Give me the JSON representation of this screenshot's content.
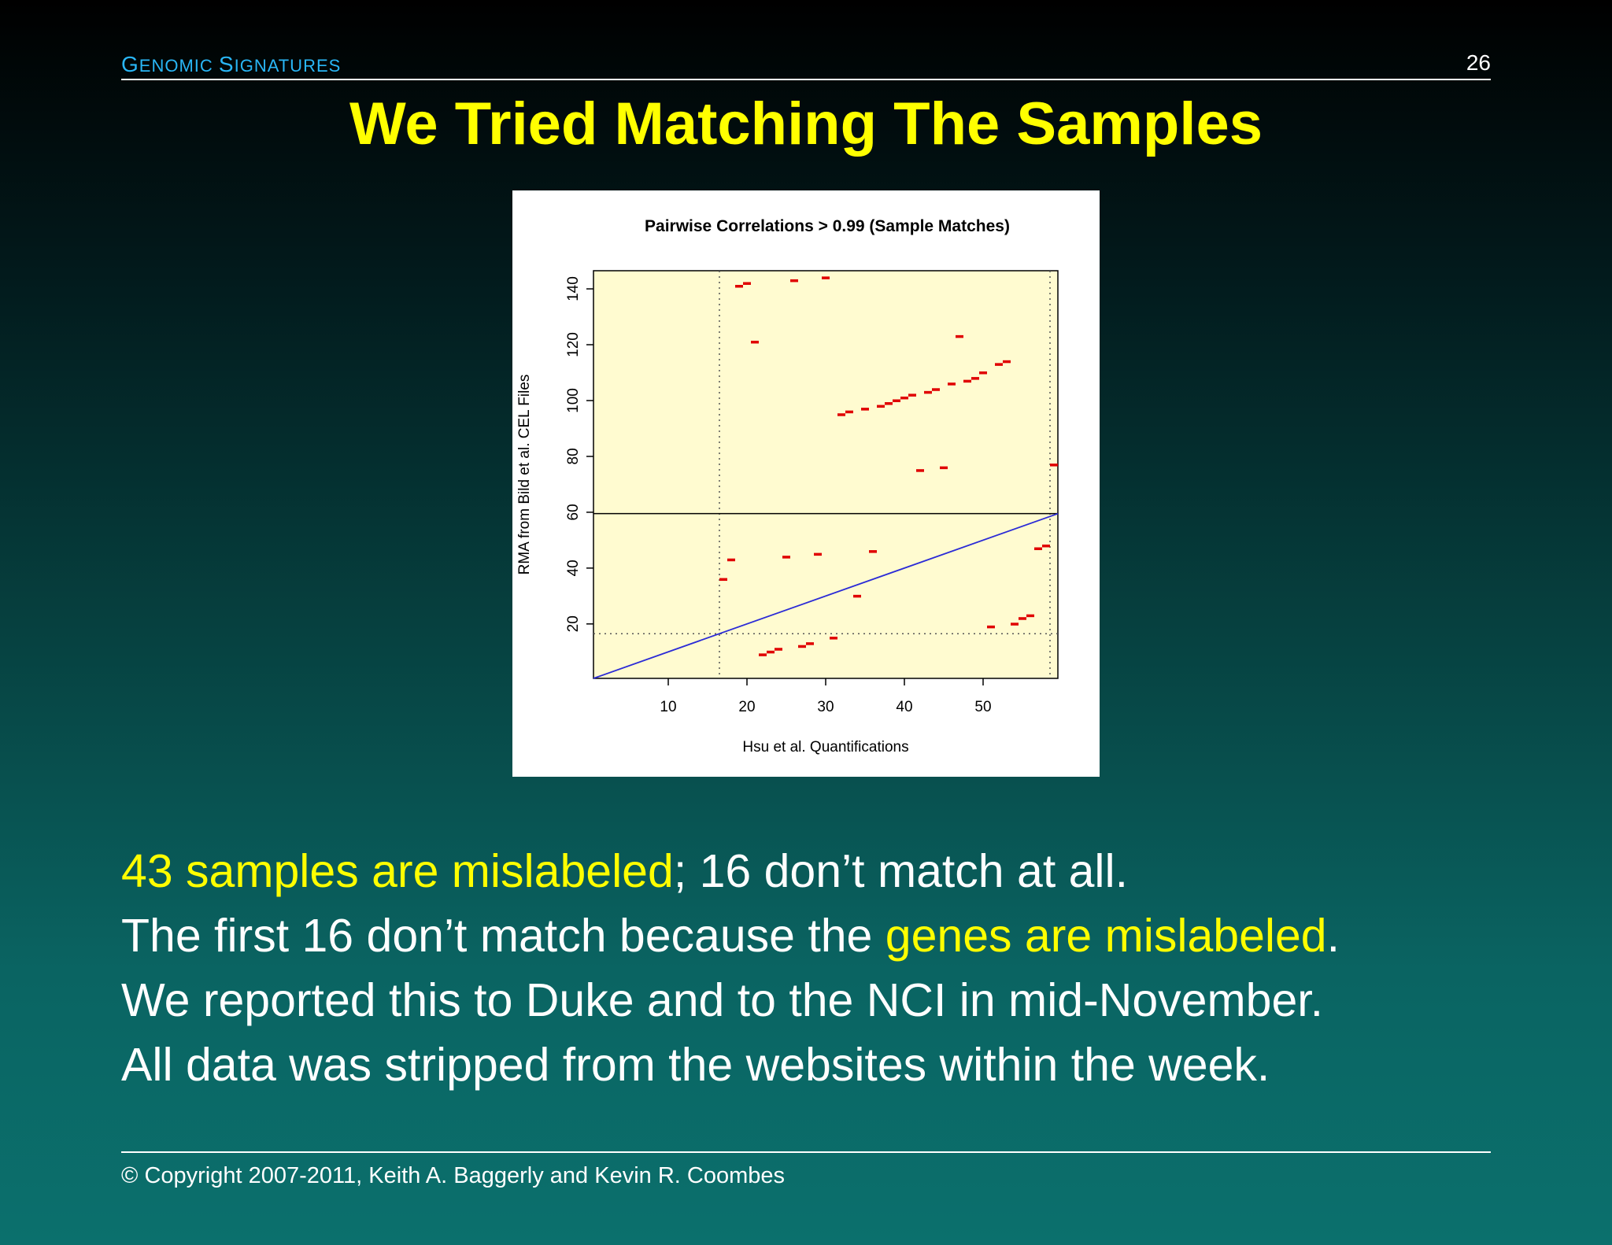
{
  "header": {
    "section_title_first": "G",
    "section_title_rest1": "enomic ",
    "section_title_second": "S",
    "section_title_rest2": "ignatures",
    "page_number": "26"
  },
  "slide": {
    "title": "We Tried Matching The Samples"
  },
  "body": {
    "line1_highlight": "43 samples are mislabeled",
    "line1_rest": "; 16 don’t match at all.",
    "line2_start": "The first 16 don’t match because the ",
    "line2_highlight": "genes are mislabeled",
    "line2_end": ".",
    "line3": "We reported this to Duke and to the NCI in mid-November.",
    "line4": "All data was stripped from the websites within the week."
  },
  "footer": {
    "copyright_symbol": "©",
    "copyright": "Copyright 2007-2011, Keith A. Baggerly and Kevin R. Coombes"
  },
  "colors": {
    "title": "#ffff00",
    "header": "#29b6f6",
    "plot_background": "#fffbd0",
    "marker": "#e00000",
    "diagonal": "#2b2bd6"
  },
  "chart_data": {
    "type": "scatter",
    "title": "Pairwise Correlations > 0.99 (Sample Matches)",
    "xlabel": "Hsu et al. Quantifications",
    "ylabel": "RMA from Bild et al. CEL Files",
    "xlim": [
      0.5,
      59.5
    ],
    "ylim": [
      0.5,
      146.5
    ],
    "xticks": [
      10,
      20,
      30,
      40,
      50
    ],
    "yticks": [
      20,
      40,
      60,
      80,
      100,
      120,
      140
    ],
    "marker": "dash",
    "reference_lines": {
      "horizontal_solid": 59.5,
      "vertical_dotted": [
        16.5,
        58.5
      ],
      "horizontal_dotted": 16.5,
      "diagonal": [
        [
          0.5,
          0.5
        ],
        [
          59.5,
          59.5
        ]
      ]
    },
    "points": [
      [
        17,
        36
      ],
      [
        18,
        43
      ],
      [
        19,
        141
      ],
      [
        20,
        142
      ],
      [
        21,
        121
      ],
      [
        22,
        9
      ],
      [
        23,
        10
      ],
      [
        24,
        11
      ],
      [
        25,
        44
      ],
      [
        26,
        143
      ],
      [
        27,
        12
      ],
      [
        28,
        13
      ],
      [
        29,
        45
      ],
      [
        30,
        144
      ],
      [
        31,
        15
      ],
      [
        32,
        95
      ],
      [
        33,
        96
      ],
      [
        34,
        30
      ],
      [
        35,
        97
      ],
      [
        36,
        46
      ],
      [
        37,
        98
      ],
      [
        38,
        99
      ],
      [
        39,
        100
      ],
      [
        40,
        101
      ],
      [
        41,
        102
      ],
      [
        42,
        75
      ],
      [
        43,
        103
      ],
      [
        44,
        104
      ],
      [
        45,
        76
      ],
      [
        46,
        106
      ],
      [
        47,
        123
      ],
      [
        48,
        107
      ],
      [
        49,
        108
      ],
      [
        50,
        110
      ],
      [
        51,
        19
      ],
      [
        52,
        113
      ],
      [
        53,
        114
      ],
      [
        54,
        20
      ],
      [
        55,
        22
      ],
      [
        56,
        23
      ],
      [
        57,
        47
      ],
      [
        58,
        48
      ],
      [
        59,
        77
      ]
    ]
  }
}
